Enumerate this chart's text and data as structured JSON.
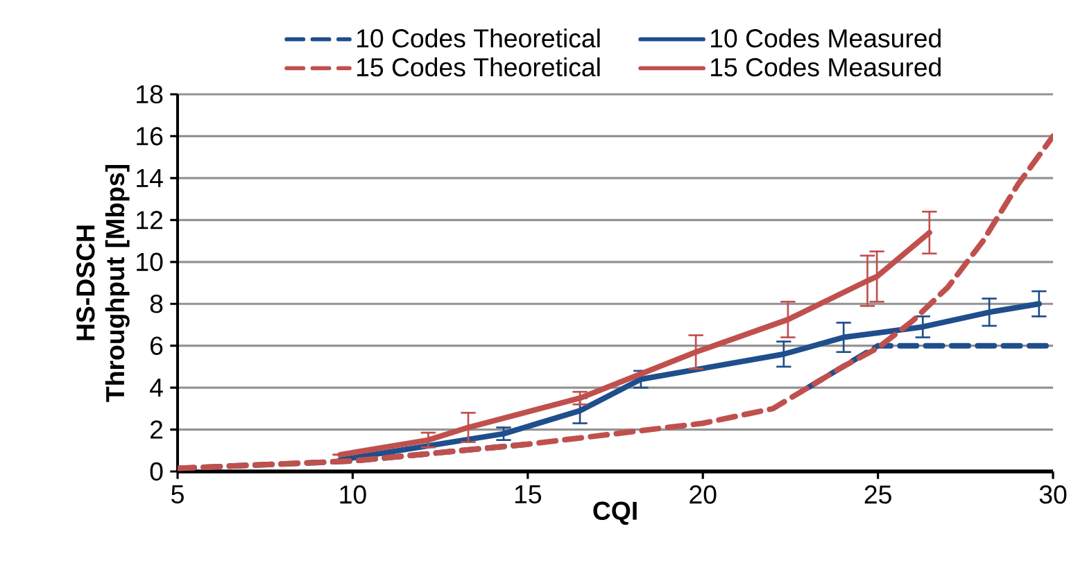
{
  "chart_data": {
    "type": "line",
    "xlabel": "CQI",
    "ylabel": "HS-DSCH Throughput [Mbps]",
    "xlim": [
      5,
      30
    ],
    "xticks": [
      5,
      10,
      15,
      20,
      25,
      30
    ],
    "ylim": [
      0,
      18
    ],
    "yticks": [
      0,
      2,
      4,
      6,
      8,
      10,
      12,
      14,
      16,
      18
    ],
    "grid": "y",
    "legend": "top",
    "marker": "none",
    "series": [
      {
        "name": "10 Codes Theoretical",
        "color": "#1f4e8c",
        "line_style": "dashed",
        "x": [
          5,
          10,
          15,
          20,
          22,
          23,
          24,
          25,
          26,
          27,
          28,
          29,
          30
        ],
        "values": [
          0.15,
          0.5,
          1.3,
          null,
          null,
          4.0,
          5.0,
          6.0,
          6.0,
          6.0,
          6.0,
          6.0,
          6.0
        ]
      },
      {
        "name": "10 Codes Measured",
        "color": "#1f4e8c",
        "line_style": "solid",
        "x": [
          9.64,
          14.31,
          16.49,
          18.23,
          22.31,
          24.02,
          26.28,
          28.18,
          29.6
        ],
        "values": [
          0.55,
          1.8,
          2.9,
          4.4,
          5.6,
          6.4,
          6.9,
          7.6,
          8.0
        ],
        "errors": [
          null,
          0.3,
          0.6,
          0.4,
          0.6,
          0.7,
          0.5,
          0.65,
          0.6
        ]
      },
      {
        "name": "15 Codes Theoretical",
        "color": "#c0504d",
        "line_style": "dashed",
        "x": [
          5,
          10,
          15,
          20,
          22,
          23,
          24,
          25,
          26,
          27,
          28,
          29,
          30
        ],
        "values": [
          0.15,
          0.5,
          1.3,
          2.3,
          3.0,
          4.0,
          5.0,
          5.9,
          7.2,
          8.8,
          11.0,
          13.7,
          16.0
        ]
      },
      {
        "name": "15 Codes Measured",
        "color": "#c0504d",
        "line_style": "solid",
        "x": [
          9.64,
          12.16,
          13.3,
          16.49,
          19.8,
          22.43,
          24.7,
          24.97,
          26.47
        ],
        "values": [
          0.8,
          1.5,
          2.1,
          3.5,
          5.7,
          7.25,
          9.1,
          9.3,
          11.4
        ],
        "errors": [
          null,
          0.35,
          0.7,
          0.3,
          0.8,
          0.85,
          1.2,
          1.2,
          1.0
        ]
      }
    ]
  }
}
